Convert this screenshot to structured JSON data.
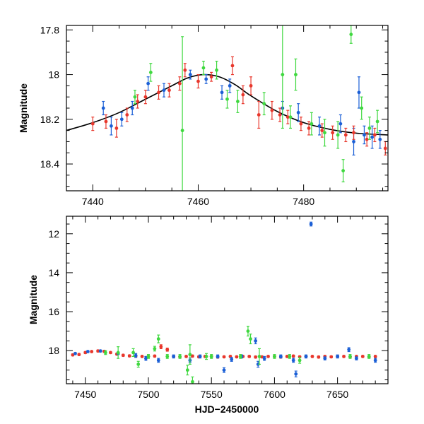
{
  "colors": {
    "series_1": "#1b5fd6",
    "series_2": "#e8372c",
    "series_3": "#3fd83f",
    "model": "#000000"
  },
  "chart_data": [
    {
      "type": "scatter",
      "ylabel": "Magnitude",
      "xlabel": "",
      "xlim": [
        7435,
        7496
      ],
      "ylim": [
        18.52,
        17.78
      ],
      "y_inverted": true,
      "x_ticks": [
        "7440",
        "7460",
        "7480"
      ],
      "y_ticks": [
        "17.8",
        "18",
        "18.2",
        "18.4"
      ],
      "grid": false,
      "legend": "none",
      "model_curve": {
        "x": [
          7435,
          7440,
          7445,
          7450,
          7455,
          7458,
          7461,
          7464,
          7467,
          7470,
          7475,
          7480,
          7485,
          7490,
          7496
        ],
        "y": [
          18.25,
          18.215,
          18.17,
          18.11,
          18.05,
          18.015,
          18.0,
          18.01,
          18.045,
          18.095,
          18.165,
          18.215,
          18.245,
          18.262,
          18.27
        ]
      },
      "series": [
        {
          "color": "series_1",
          "points": [
            {
              "x": 7442,
              "y": 18.15,
              "err": 0.03
            },
            {
              "x": 7443.5,
              "y": 18.23,
              "err": 0.04
            },
            {
              "x": 7445.5,
              "y": 18.2,
              "err": 0.03
            },
            {
              "x": 7447.5,
              "y": 18.15,
              "err": 0.03
            },
            {
              "x": 7450.5,
              "y": 18.04,
              "err": 0.03
            },
            {
              "x": 7453.5,
              "y": 18.07,
              "err": 0.03
            },
            {
              "x": 7458.5,
              "y": 18.0,
              "err": 0.02
            },
            {
              "x": 7461.5,
              "y": 18.02,
              "err": 0.02
            },
            {
              "x": 7464.5,
              "y": 18.08,
              "err": 0.03
            },
            {
              "x": 7466,
              "y": 18.05,
              "err": 0.03
            },
            {
              "x": 7476,
              "y": 18.15,
              "err": 0.03
            },
            {
              "x": 7479,
              "y": 18.17,
              "err": 0.04
            },
            {
              "x": 7483,
              "y": 18.23,
              "err": 0.04
            },
            {
              "x": 7487,
              "y": 18.22,
              "err": 0.04
            },
            {
              "x": 7489.5,
              "y": 18.3,
              "err": 0.06
            },
            {
              "x": 7490.5,
              "y": 18.08,
              "err": 0.07
            },
            {
              "x": 7491.5,
              "y": 18.27,
              "err": 0.04
            },
            {
              "x": 7493,
              "y": 18.28,
              "err": 0.05
            },
            {
              "x": 7494.5,
              "y": 18.29,
              "err": 0.04
            }
          ]
        },
        {
          "color": "series_2",
          "points": [
            {
              "x": 7440,
              "y": 18.22,
              "err": 0.03
            },
            {
              "x": 7442.5,
              "y": 18.21,
              "err": 0.03
            },
            {
              "x": 7444.5,
              "y": 18.24,
              "err": 0.04
            },
            {
              "x": 7446.5,
              "y": 18.18,
              "err": 0.03
            },
            {
              "x": 7448.5,
              "y": 18.12,
              "err": 0.03
            },
            {
              "x": 7450,
              "y": 18.1,
              "err": 0.03
            },
            {
              "x": 7452.5,
              "y": 18.08,
              "err": 0.03
            },
            {
              "x": 7454.5,
              "y": 18.07,
              "err": 0.03
            },
            {
              "x": 7456.5,
              "y": 18.04,
              "err": 0.03
            },
            {
              "x": 7457.5,
              "y": 17.98,
              "err": 0.03
            },
            {
              "x": 7460,
              "y": 18.03,
              "err": 0.03
            },
            {
              "x": 7462.5,
              "y": 18.01,
              "err": 0.02
            },
            {
              "x": 7466.5,
              "y": 17.96,
              "err": 0.04
            },
            {
              "x": 7468.5,
              "y": 18.09,
              "err": 0.04
            },
            {
              "x": 7470,
              "y": 18.05,
              "err": 0.04
            },
            {
              "x": 7471.5,
              "y": 18.18,
              "err": 0.06
            },
            {
              "x": 7474,
              "y": 18.16,
              "err": 0.04
            },
            {
              "x": 7475.5,
              "y": 18.18,
              "err": 0.03
            },
            {
              "x": 7477,
              "y": 18.19,
              "err": 0.03
            },
            {
              "x": 7479.5,
              "y": 18.22,
              "err": 0.03
            },
            {
              "x": 7481,
              "y": 18.24,
              "err": 0.03
            },
            {
              "x": 7483.5,
              "y": 18.25,
              "err": 0.03
            },
            {
              "x": 7485.5,
              "y": 18.26,
              "err": 0.03
            },
            {
              "x": 7488,
              "y": 18.27,
              "err": 0.03
            },
            {
              "x": 7489.5,
              "y": 18.26,
              "err": 0.03
            },
            {
              "x": 7492,
              "y": 18.29,
              "err": 0.03
            },
            {
              "x": 7493.5,
              "y": 18.27,
              "err": 0.03
            },
            {
              "x": 7495.5,
              "y": 18.33,
              "err": 0.03
            }
          ]
        },
        {
          "color": "series_3",
          "points": [
            {
              "x": 7448,
              "y": 18.1,
              "err": 0.03
            },
            {
              "x": 7451,
              "y": 17.99,
              "err": 0.04
            },
            {
              "x": 7457,
              "y": 18.25,
              "err": 0.42
            },
            {
              "x": 7461,
              "y": 17.97,
              "err": 0.03
            },
            {
              "x": 7463.5,
              "y": 17.98,
              "err": 0.04
            },
            {
              "x": 7465.5,
              "y": 18.11,
              "err": 0.04
            },
            {
              "x": 7467.5,
              "y": 18.12,
              "err": 0.05
            },
            {
              "x": 7472.5,
              "y": 18.13,
              "err": 0.05
            },
            {
              "x": 7476,
              "y": 18.0,
              "err": 0.24
            },
            {
              "x": 7477.5,
              "y": 18.19,
              "err": 0.05
            },
            {
              "x": 7478.5,
              "y": 18.0,
              "err": 0.07
            },
            {
              "x": 7481.5,
              "y": 18.22,
              "err": 0.05
            },
            {
              "x": 7484,
              "y": 18.26,
              "err": 0.06
            },
            {
              "x": 7486.5,
              "y": 18.27,
              "err": 0.06
            },
            {
              "x": 7487.5,
              "y": 18.43,
              "err": 0.05
            },
            {
              "x": 7489,
              "y": 17.82,
              "err": 0.04
            },
            {
              "x": 7491,
              "y": 18.15,
              "err": 0.05
            },
            {
              "x": 7492.5,
              "y": 18.24,
              "err": 0.05
            },
            {
              "x": 7494,
              "y": 18.21,
              "err": 0.05
            }
          ]
        }
      ]
    },
    {
      "type": "scatter",
      "ylabel": "Magnitude",
      "xlabel": "HJD−2450000",
      "xlim": [
        7435,
        7690
      ],
      "ylim": [
        19.7,
        11.1
      ],
      "y_inverted": true,
      "x_ticks": [
        "7450",
        "7500",
        "7550",
        "7600",
        "7650"
      ],
      "y_ticks": [
        "12",
        "14",
        "16",
        "18"
      ],
      "grid": false,
      "legend": "none",
      "series": [
        {
          "color": "series_2",
          "points": [
            {
              "x": 7440,
              "y": 18.22,
              "err": 0.05
            },
            {
              "x": 7445,
              "y": 18.2,
              "err": 0.05
            },
            {
              "x": 7450,
              "y": 18.1,
              "err": 0.05
            },
            {
              "x": 7455,
              "y": 18.05,
              "err": 0.05
            },
            {
              "x": 7460,
              "y": 18.02,
              "err": 0.05
            },
            {
              "x": 7465,
              "y": 18.04,
              "err": 0.05
            },
            {
              "x": 7470,
              "y": 18.1,
              "err": 0.05
            },
            {
              "x": 7475,
              "y": 18.18,
              "err": 0.05
            },
            {
              "x": 7480,
              "y": 18.24,
              "err": 0.05
            },
            {
              "x": 7485,
              "y": 18.27,
              "err": 0.05
            },
            {
              "x": 7490,
              "y": 18.28,
              "err": 0.05
            },
            {
              "x": 7495,
              "y": 18.3,
              "err": 0.05
            },
            {
              "x": 7500,
              "y": 18.3,
              "err": 0.05
            },
            {
              "x": 7505,
              "y": 18.28,
              "err": 0.05
            },
            {
              "x": 7510,
              "y": 17.8,
              "err": 0.1
            },
            {
              "x": 7515,
              "y": 17.95,
              "err": 0.08
            },
            {
              "x": 7520,
              "y": 18.3,
              "err": 0.05
            },
            {
              "x": 7525,
              "y": 18.32,
              "err": 0.05
            },
            {
              "x": 7530,
              "y": 18.3,
              "err": 0.05
            },
            {
              "x": 7535,
              "y": 18.28,
              "err": 0.05
            },
            {
              "x": 7540,
              "y": 18.32,
              "err": 0.05
            },
            {
              "x": 7545,
              "y": 18.3,
              "err": 0.05
            },
            {
              "x": 7550,
              "y": 18.3,
              "err": 0.05
            },
            {
              "x": 7555,
              "y": 18.33,
              "err": 0.05
            },
            {
              "x": 7560,
              "y": 18.32,
              "err": 0.05
            },
            {
              "x": 7565,
              "y": 18.3,
              "err": 0.05
            },
            {
              "x": 7570,
              "y": 18.32,
              "err": 0.05
            },
            {
              "x": 7575,
              "y": 18.3,
              "err": 0.05
            },
            {
              "x": 7580,
              "y": 18.3,
              "err": 0.05
            },
            {
              "x": 7585,
              "y": 18.33,
              "err": 0.05
            },
            {
              "x": 7590,
              "y": 18.32,
              "err": 0.05
            },
            {
              "x": 7595,
              "y": 18.3,
              "err": 0.05
            },
            {
              "x": 7600,
              "y": 18.3,
              "err": 0.05
            },
            {
              "x": 7605,
              "y": 18.33,
              "err": 0.05
            },
            {
              "x": 7610,
              "y": 18.3,
              "err": 0.05
            },
            {
              "x": 7615,
              "y": 18.28,
              "err": 0.05
            },
            {
              "x": 7620,
              "y": 18.32,
              "err": 0.05
            },
            {
              "x": 7625,
              "y": 18.3,
              "err": 0.05
            },
            {
              "x": 7630,
              "y": 18.3,
              "err": 0.05
            },
            {
              "x": 7635,
              "y": 18.33,
              "err": 0.05
            },
            {
              "x": 7640,
              "y": 18.3,
              "err": 0.05
            },
            {
              "x": 7645,
              "y": 18.32,
              "err": 0.05
            },
            {
              "x": 7650,
              "y": 18.3,
              "err": 0.05
            },
            {
              "x": 7655,
              "y": 18.3,
              "err": 0.05
            },
            {
              "x": 7660,
              "y": 18.32,
              "err": 0.05
            },
            {
              "x": 7665,
              "y": 18.3,
              "err": 0.05
            },
            {
              "x": 7670,
              "y": 18.3,
              "err": 0.05
            },
            {
              "x": 7675,
              "y": 18.32,
              "err": 0.05
            },
            {
              "x": 7680,
              "y": 18.3,
              "err": 0.05
            }
          ]
        },
        {
          "color": "series_1",
          "points": [
            {
              "x": 7442,
              "y": 18.15,
              "err": 0.05
            },
            {
              "x": 7452,
              "y": 18.05,
              "err": 0.05
            },
            {
              "x": 7462,
              "y": 18.02,
              "err": 0.05
            },
            {
              "x": 7476,
              "y": 18.15,
              "err": 0.05
            },
            {
              "x": 7490,
              "y": 18.25,
              "err": 0.1
            },
            {
              "x": 7498,
              "y": 18.4,
              "err": 0.1
            },
            {
              "x": 7508,
              "y": 18.5,
              "err": 0.1
            },
            {
              "x": 7520,
              "y": 18.3,
              "err": 0.08
            },
            {
              "x": 7533,
              "y": 18.5,
              "err": 0.12
            },
            {
              "x": 7541,
              "y": 18.3,
              "err": 0.08
            },
            {
              "x": 7555,
              "y": 18.3,
              "err": 0.08
            },
            {
              "x": 7560,
              "y": 19.0,
              "err": 0.12
            },
            {
              "x": 7566,
              "y": 18.45,
              "err": 0.1
            },
            {
              "x": 7574,
              "y": 18.3,
              "err": 0.08
            },
            {
              "x": 7585,
              "y": 17.5,
              "err": 0.15
            },
            {
              "x": 7587,
              "y": 18.7,
              "err": 0.15
            },
            {
              "x": 7592,
              "y": 18.4,
              "err": 0.1
            },
            {
              "x": 7605,
              "y": 18.3,
              "err": 0.08
            },
            {
              "x": 7615,
              "y": 18.5,
              "err": 0.1
            },
            {
              "x": 7617,
              "y": 19.2,
              "err": 0.15
            },
            {
              "x": 7625,
              "y": 18.3,
              "err": 0.08
            },
            {
              "x": 7629,
              "y": 11.5,
              "err": 0.1
            },
            {
              "x": 7640,
              "y": 18.4,
              "err": 0.08
            },
            {
              "x": 7650,
              "y": 18.3,
              "err": 0.08
            },
            {
              "x": 7659,
              "y": 17.95,
              "err": 0.1
            },
            {
              "x": 7665,
              "y": 18.4,
              "err": 0.08
            },
            {
              "x": 7680,
              "y": 18.5,
              "err": 0.1
            }
          ]
        },
        {
          "color": "series_3",
          "points": [
            {
              "x": 7466,
              "y": 18.1,
              "err": 0.1
            },
            {
              "x": 7476,
              "y": 18.1,
              "err": 0.3
            },
            {
              "x": 7488,
              "y": 18.1,
              "err": 0.2
            },
            {
              "x": 7492,
              "y": 18.7,
              "err": 0.15
            },
            {
              "x": 7500,
              "y": 18.3,
              "err": 0.1
            },
            {
              "x": 7505,
              "y": 17.9,
              "err": 0.12
            },
            {
              "x": 7508,
              "y": 17.4,
              "err": 0.2
            },
            {
              "x": 7515,
              "y": 18.3,
              "err": 0.1
            },
            {
              "x": 7525,
              "y": 18.3,
              "err": 0.1
            },
            {
              "x": 7531,
              "y": 19.0,
              "err": 0.25
            },
            {
              "x": 7533,
              "y": 18.2,
              "err": 0.5
            },
            {
              "x": 7535,
              "y": 19.6,
              "err": 0.25
            },
            {
              "x": 7546,
              "y": 18.3,
              "err": 0.15
            },
            {
              "x": 7550,
              "y": 18.3,
              "err": 0.1
            },
            {
              "x": 7573,
              "y": 18.3,
              "err": 0.1
            },
            {
              "x": 7579,
              "y": 17.0,
              "err": 0.25
            },
            {
              "x": 7581,
              "y": 17.4,
              "err": 0.25
            },
            {
              "x": 7588,
              "y": 18.3,
              "err": 0.4
            },
            {
              "x": 7600,
              "y": 18.3,
              "err": 0.1
            },
            {
              "x": 7612,
              "y": 18.3,
              "err": 0.1
            },
            {
              "x": 7620,
              "y": 18.5,
              "err": 0.15
            },
            {
              "x": 7660,
              "y": 18.3,
              "err": 0.1
            },
            {
              "x": 7675,
              "y": 18.3,
              "err": 0.1
            }
          ]
        }
      ]
    }
  ]
}
